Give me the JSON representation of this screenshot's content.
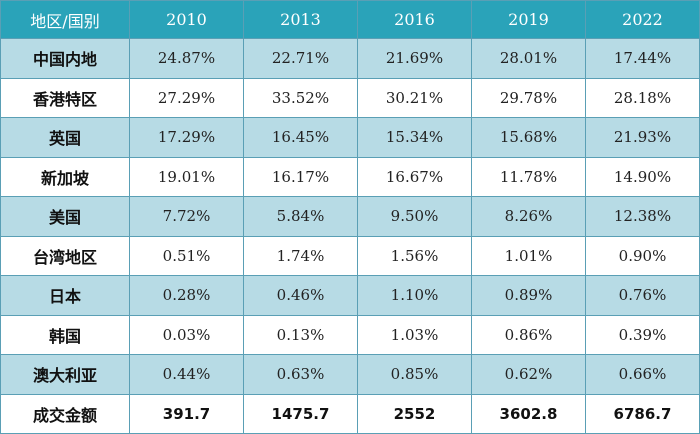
{
  "table": {
    "headers": [
      "地区/国别",
      "2010",
      "2013",
      "2016",
      "2019",
      "2022"
    ],
    "rows": [
      {
        "label": "中国内地",
        "values": [
          "24.87%",
          "22.71%",
          "21.69%",
          "28.01%",
          "17.44%"
        ]
      },
      {
        "label": "香港特区",
        "values": [
          "27.29%",
          "33.52%",
          "30.21%",
          "29.78%",
          "28.18%"
        ]
      },
      {
        "label": "英国",
        "values": [
          "17.29%",
          "16.45%",
          "15.34%",
          "15.68%",
          "21.93%"
        ]
      },
      {
        "label": "新加坡",
        "values": [
          "19.01%",
          "16.17%",
          "16.67%",
          "11.78%",
          "14.90%"
        ]
      },
      {
        "label": "美国",
        "values": [
          "7.72%",
          "5.84%",
          "9.50%",
          "8.26%",
          "12.38%"
        ]
      },
      {
        "label": "台湾地区",
        "values": [
          "0.51%",
          "1.74%",
          "1.56%",
          "1.01%",
          "0.90%"
        ]
      },
      {
        "label": "日本",
        "values": [
          "0.28%",
          "0.46%",
          "1.10%",
          "0.89%",
          "0.76%"
        ]
      },
      {
        "label": "韩国",
        "values": [
          "0.03%",
          "0.13%",
          "1.03%",
          "0.86%",
          "0.39%"
        ]
      },
      {
        "label": "澳大利亚",
        "values": [
          "0.44%",
          "0.63%",
          "0.85%",
          "0.62%",
          "0.66%"
        ]
      },
      {
        "label": "成交金额",
        "values": [
          "391.7",
          "1475.7",
          "2552",
          "3602.8",
          "6786.7"
        ]
      }
    ]
  },
  "colors": {
    "header_bg": "#2aa3b9",
    "header_text": "#ffffff",
    "shaded_row_bg": "#b7dbe5",
    "plain_row_bg": "#ffffff",
    "border": "#5a9fb5"
  }
}
